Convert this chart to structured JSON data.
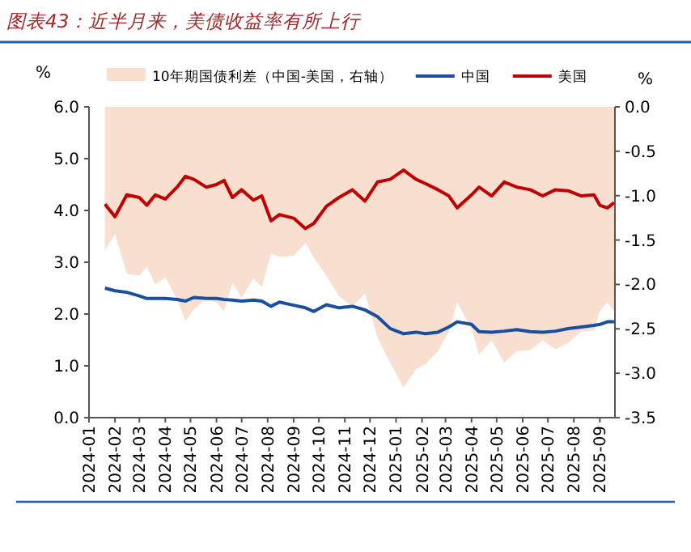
{
  "chart_data": {
    "type": "line",
    "title": "图表43：近半月来，美债收益率有所上行",
    "ylabel": "%",
    "y2label": "%",
    "legend": "top",
    "x": [
      "2024-01-20",
      "2024-02-01",
      "2024-02-15",
      "2024-03-01",
      "2024-03-10",
      "2024-03-20",
      "2024-04-01",
      "2024-04-15",
      "2024-04-25",
      "2024-05-05",
      "2024-05-20",
      "2024-06-01",
      "2024-06-10",
      "2024-06-20",
      "2024-07-01",
      "2024-07-15",
      "2024-07-25",
      "2024-08-05",
      "2024-08-15",
      "2024-09-01",
      "2024-09-15",
      "2024-09-25",
      "2024-10-10",
      "2024-10-25",
      "2024-11-10",
      "2024-11-25",
      "2024-12-10",
      "2024-12-25",
      "2025-01-10",
      "2025-01-25",
      "2025-02-05",
      "2025-02-20",
      "2025-03-05",
      "2025-03-15",
      "2025-04-01",
      "2025-04-10",
      "2025-04-25",
      "2025-05-10",
      "2025-05-25",
      "2025-06-10",
      "2025-06-25",
      "2025-07-10",
      "2025-07-25",
      "2025-08-10",
      "2025-08-25",
      "2025-09-01",
      "2025-09-10",
      "2025-09-18"
    ],
    "series": [
      {
        "name": "10年期国债利差（中国-美国，右轴）",
        "type": "area",
        "axis": "y2",
        "color": "#f9dfcf",
        "values": [
          -1.62,
          -1.43,
          -1.88,
          -1.9,
          -1.8,
          -2.0,
          -1.92,
          -2.17,
          -2.41,
          -2.28,
          -2.15,
          -2.2,
          -2.3,
          -1.98,
          -2.15,
          -1.93,
          -2.03,
          -1.65,
          -1.69,
          -1.68,
          -1.53,
          -1.7,
          -1.9,
          -2.13,
          -2.25,
          -2.1,
          -2.6,
          -2.88,
          -3.16,
          -2.95,
          -2.9,
          -2.75,
          -2.53,
          -2.2,
          -2.5,
          -2.79,
          -2.63,
          -2.88,
          -2.75,
          -2.74,
          -2.63,
          -2.73,
          -2.66,
          -2.53,
          -2.52,
          -2.3,
          -2.2,
          -2.3
        ]
      },
      {
        "name": "中国",
        "color": "#1a4fa0",
        "values": [
          2.5,
          2.45,
          2.42,
          2.35,
          2.3,
          2.3,
          2.3,
          2.28,
          2.25,
          2.32,
          2.3,
          2.3,
          2.28,
          2.27,
          2.25,
          2.27,
          2.25,
          2.15,
          2.23,
          2.17,
          2.12,
          2.05,
          2.18,
          2.12,
          2.15,
          2.08,
          1.95,
          1.72,
          1.62,
          1.65,
          1.62,
          1.65,
          1.75,
          1.85,
          1.8,
          1.66,
          1.65,
          1.67,
          1.7,
          1.66,
          1.65,
          1.67,
          1.72,
          1.75,
          1.78,
          1.8,
          1.85,
          1.85
        ]
      },
      {
        "name": "美国",
        "color": "#c00000",
        "values": [
          4.12,
          3.88,
          4.3,
          4.25,
          4.1,
          4.3,
          4.22,
          4.45,
          4.66,
          4.6,
          4.45,
          4.5,
          4.58,
          4.25,
          4.4,
          4.2,
          4.28,
          3.8,
          3.92,
          3.85,
          3.65,
          3.75,
          4.08,
          4.25,
          4.4,
          4.18,
          4.55,
          4.6,
          4.78,
          4.6,
          4.52,
          4.4,
          4.28,
          4.05,
          4.3,
          4.45,
          4.28,
          4.55,
          4.45,
          4.4,
          4.28,
          4.4,
          4.38,
          4.28,
          4.3,
          4.1,
          4.05,
          4.15
        ]
      }
    ],
    "xlim": [
      "2024-01-01",
      "2025-09-19"
    ],
    "xticks": [
      "2024-01",
      "2024-02",
      "2024-03",
      "2024-04",
      "2024-05",
      "2024-06",
      "2024-07",
      "2024-08",
      "2024-09",
      "2024-10",
      "2024-11",
      "2024-12",
      "2025-01",
      "2025-02",
      "2025-03",
      "2025-04",
      "2025-05",
      "2025-06",
      "2025-07",
      "2025-08",
      "2025-09"
    ],
    "ylim": [
      0,
      6
    ],
    "yticks": [
      {
        "value": 0,
        "label": "0.0"
      },
      {
        "value": 1,
        "label": "1.0"
      },
      {
        "value": 2,
        "label": "2.0"
      },
      {
        "value": 3,
        "label": "3.0"
      },
      {
        "value": 4,
        "label": "4.0"
      },
      {
        "value": 5,
        "label": "5.0"
      },
      {
        "value": 6,
        "label": "6.0"
      }
    ],
    "y2lim": [
      -3.5,
      0
    ],
    "y2ticks": [
      {
        "value": 0,
        "label": "0.0"
      },
      -0.5,
      {
        "value": -1,
        "label": "-1.0"
      },
      -1.5,
      {
        "value": -2,
        "label": "-2.0"
      },
      -2.5,
      {
        "value": -3,
        "label": "-3.0"
      },
      -3.5
    ]
  }
}
